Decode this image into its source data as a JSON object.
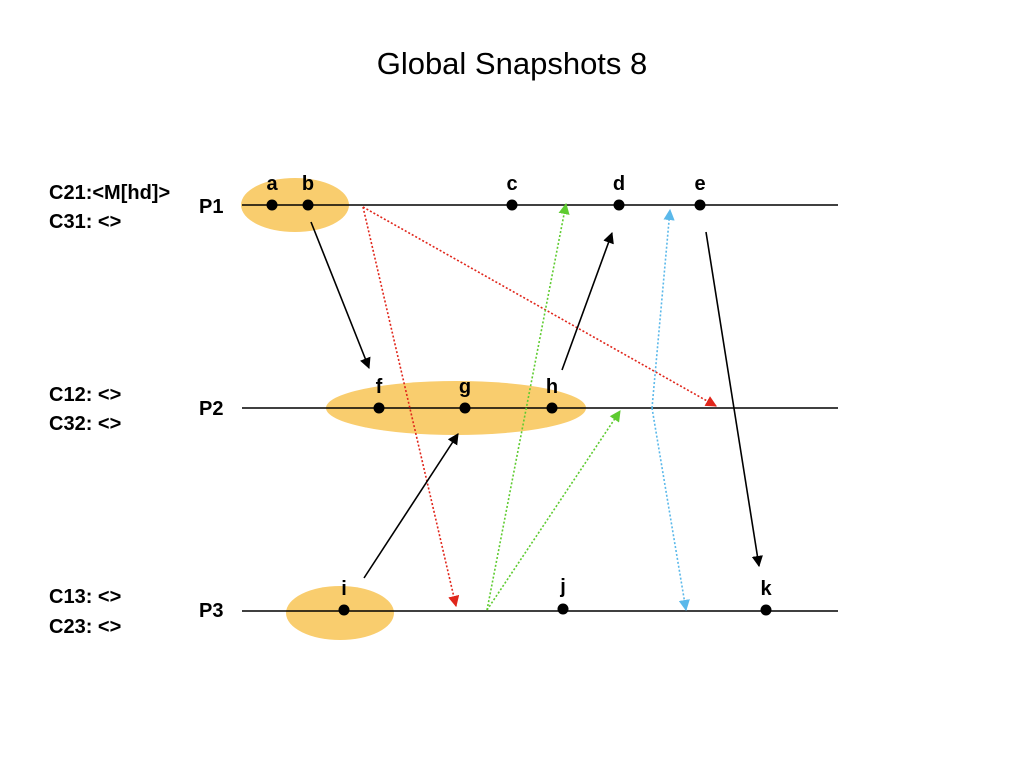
{
  "title": "Global Snapshots 8",
  "processes": [
    {
      "id": "P1",
      "label": "P1",
      "channels": [
        "C21:<M[hd]>",
        "C31: <>"
      ]
    },
    {
      "id": "P2",
      "label": "P2",
      "channels": [
        "C12: <>",
        "C32: <>"
      ]
    },
    {
      "id": "P3",
      "label": "P3",
      "channels": [
        "C13: <>",
        "C23: <>"
      ]
    }
  ],
  "events": [
    {
      "label": "a",
      "process": "P1"
    },
    {
      "label": "b",
      "process": "P1"
    },
    {
      "label": "c",
      "process": "P1"
    },
    {
      "label": "d",
      "process": "P1"
    },
    {
      "label": "e",
      "process": "P1"
    },
    {
      "label": "f",
      "process": "P2"
    },
    {
      "label": "g",
      "process": "P2"
    },
    {
      "label": "h",
      "process": "P2"
    },
    {
      "label": "i",
      "process": "P3"
    },
    {
      "label": "j",
      "process": "P3"
    },
    {
      "label": "k",
      "process": "P3"
    }
  ],
  "colors": {
    "snapshot": "#f9cd6e",
    "message": "#000000",
    "marker_p1": "#e0261b",
    "marker_p3": "#5ecb30",
    "marker_p2": "#5ab8ea"
  }
}
